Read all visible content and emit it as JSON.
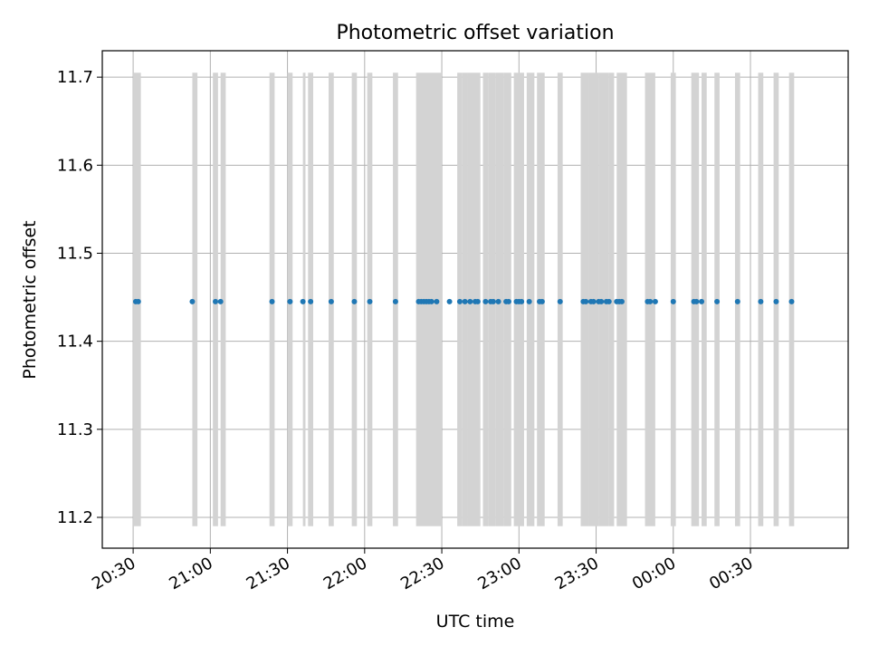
{
  "chart_data": {
    "type": "scatter",
    "title": "Photometric offset variation",
    "xlabel": "UTC time",
    "ylabel": "Photometric offset",
    "grid": true,
    "xlim": [
      "20:18",
      "01:08"
    ],
    "ylim": [
      11.165,
      11.73
    ],
    "x_ticks": [
      "20:30",
      "21:00",
      "21:30",
      "22:00",
      "22:30",
      "23:00",
      "23:30",
      "00:00",
      "00:30"
    ],
    "y_ticks": [
      "11.2",
      "11.3",
      "11.4",
      "11.5",
      "11.6",
      "11.7"
    ],
    "series": [
      {
        "color": "#1f77b4",
        "marker": "dot",
        "y_value": 11.445,
        "x": [
          "20:31",
          "20:32",
          "20:53",
          "21:02",
          "21:04",
          "21:24",
          "21:31",
          "21:36",
          "21:39",
          "21:47",
          "21:56",
          "22:02",
          "22:12",
          "22:21",
          "22:22",
          "22:23",
          "22:24",
          "22:25",
          "22:26",
          "22:28",
          "22:33",
          "22:37",
          "22:39",
          "22:41",
          "22:43",
          "22:44",
          "22:47",
          "22:49",
          "22:50",
          "22:52",
          "22:55",
          "22:56",
          "22:59",
          "23:00",
          "23:01",
          "23:04",
          "23:08",
          "23:09",
          "23:16",
          "23:25",
          "23:26",
          "23:28",
          "23:29",
          "23:31",
          "23:32",
          "23:34",
          "23:35",
          "23:38",
          "23:39",
          "23:40",
          "23:50",
          "23:51",
          "23:53",
          "00:00",
          "00:08",
          "00:09",
          "00:11",
          "00:17",
          "00:25",
          "00:34",
          "00:40",
          "00:46"
        ]
      }
    ],
    "shaded_intervals": {
      "color": "#d3d3d3",
      "y_range": [
        11.19,
        11.705
      ],
      "x": [
        [
          "20:30",
          "20:33"
        ],
        [
          "20:53",
          "20:55"
        ],
        [
          "21:01",
          "21:03"
        ],
        [
          "21:04",
          "21:06"
        ],
        [
          "21:23",
          "21:25"
        ],
        [
          "21:30",
          "21:32"
        ],
        [
          "21:36",
          "21:37"
        ],
        [
          "21:38",
          "21:40"
        ],
        [
          "21:46",
          "21:48"
        ],
        [
          "21:55",
          "21:57"
        ],
        [
          "22:01",
          "22:03"
        ],
        [
          "22:11",
          "22:13"
        ],
        [
          "22:20",
          "22:30"
        ],
        [
          "22:36",
          "22:38"
        ],
        [
          "22:38",
          "22:40"
        ],
        [
          "22:40",
          "22:43"
        ],
        [
          "22:43",
          "22:45"
        ],
        [
          "22:46",
          "22:48"
        ],
        [
          "22:48",
          "22:51"
        ],
        [
          "22:51",
          "22:54"
        ],
        [
          "22:54",
          "22:57"
        ],
        [
          "22:58",
          "23:02"
        ],
        [
          "23:03",
          "23:06"
        ],
        [
          "23:07",
          "23:10"
        ],
        [
          "23:15",
          "23:17"
        ],
        [
          "23:24",
          "23:27"
        ],
        [
          "23:27",
          "23:31"
        ],
        [
          "23:31",
          "23:35"
        ],
        [
          "23:35",
          "23:37"
        ],
        [
          "23:38",
          "23:42"
        ],
        [
          "23:49",
          "23:53"
        ],
        [
          "23:59",
          "00:01"
        ],
        [
          "00:07",
          "00:10"
        ],
        [
          "00:11",
          "00:13"
        ],
        [
          "00:16",
          "00:18"
        ],
        [
          "00:24",
          "00:26"
        ],
        [
          "00:33",
          "00:35"
        ],
        [
          "00:39",
          "00:41"
        ],
        [
          "00:45",
          "00:47"
        ]
      ]
    }
  }
}
